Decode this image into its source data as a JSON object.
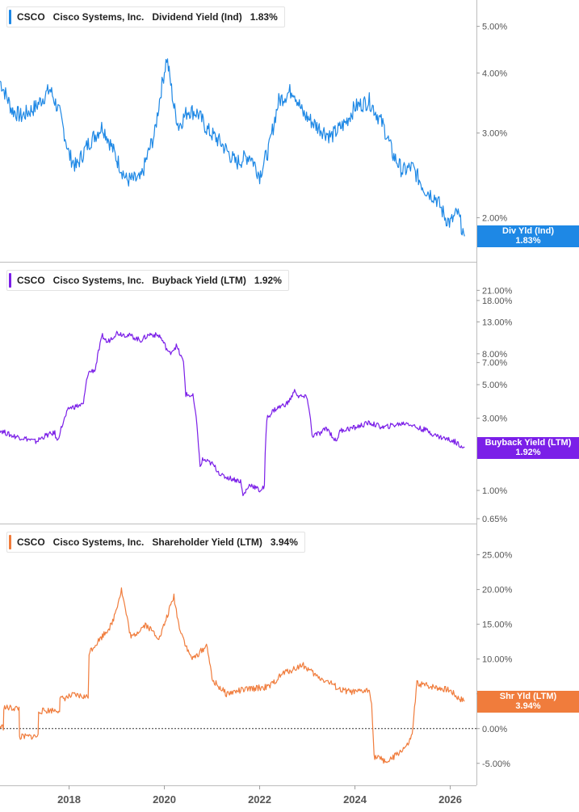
{
  "panels": [
    {
      "ticker": "CSCO",
      "company": "Cisco Systems, Inc.",
      "metric": "Dividend Yield (Ind)",
      "value": "1.83%",
      "tag_label": "Div Yld (Ind)",
      "tag_value": "1.83%",
      "color": "#1e88e5"
    },
    {
      "ticker": "CSCO",
      "company": "Cisco Systems, Inc.",
      "metric": "Buyback Yield (LTM)",
      "value": "1.92%",
      "tag_label": "Buyback Yield (LTM)",
      "tag_value": "1.92%",
      "color": "#7b1fe8"
    },
    {
      "ticker": "CSCO",
      "company": "Cisco Systems, Inc.",
      "metric": "Shareholder Yield (LTM)",
      "value": "3.94%",
      "tag_label": "Shr Yld (LTM)",
      "tag_value": "3.94%",
      "color": "#f07c3c"
    }
  ],
  "chart_data": [
    {
      "type": "line",
      "scale": "log",
      "series": [
        {
          "x": [
            2016.55,
            2016.8,
            2017.0,
            2017.3,
            2017.6,
            2017.8,
            2018.0,
            2018.15,
            2018.4,
            2018.7,
            2019.0,
            2019.2,
            2019.5,
            2019.8,
            2020.05,
            2020.2,
            2020.3,
            2020.5,
            2020.7,
            2020.9,
            2021.2,
            2021.5,
            2021.8,
            2022.0,
            2022.2,
            2022.4,
            2022.7,
            2022.9,
            2023.2,
            2023.5,
            2023.8,
            2024.0,
            2024.3,
            2024.6,
            2024.8,
            2025.0,
            2025.2,
            2025.45,
            2025.7,
            2025.9,
            2026.0,
            2026.15,
            2026.3
          ],
          "y": [
            3.85,
            3.35,
            3.25,
            3.4,
            3.7,
            3.3,
            2.7,
            2.55,
            2.85,
            3.1,
            2.65,
            2.4,
            2.4,
            3.0,
            4.3,
            3.4,
            3.1,
            3.35,
            3.3,
            3.05,
            2.85,
            2.6,
            2.7,
            2.45,
            2.8,
            3.5,
            3.7,
            3.3,
            3.1,
            2.95,
            3.15,
            3.4,
            3.5,
            3.1,
            2.7,
            2.5,
            2.55,
            2.3,
            2.2,
            2.0,
            1.95,
            2.05,
            1.83
          ]
        }
      ],
      "ylim": [
        1.75,
        5.5
      ],
      "yticks": [
        "5.00%",
        "4.00%",
        "3.00%",
        "2.00%"
      ]
    },
    {
      "type": "line",
      "scale": "log",
      "series": [
        {
          "x": [
            2016.55,
            2016.8,
            2017.1,
            2017.3,
            2017.5,
            2017.7,
            2017.75,
            2018.0,
            2018.3,
            2018.4,
            2018.55,
            2018.7,
            2018.8,
            2019.0,
            2019.3,
            2019.5,
            2019.7,
            2019.9,
            2020.1,
            2020.25,
            2020.4,
            2020.45,
            2020.6,
            2020.75,
            2020.8,
            2021.0,
            2021.2,
            2021.4,
            2021.6,
            2021.65,
            2021.8,
            2022.0,
            2022.1,
            2022.15,
            2022.3,
            2022.6,
            2022.75,
            2022.8,
            2023.0,
            2023.1,
            2023.3,
            2023.4,
            2023.6,
            2023.7,
            2024.0,
            2024.3,
            2024.6,
            2024.8,
            2025.1,
            2025.3,
            2025.5,
            2025.7,
            2025.9,
            2026.1,
            2026.3
          ],
          "y": [
            2.5,
            2.3,
            2.2,
            2.1,
            2.3,
            2.4,
            2.1,
            3.5,
            3.7,
            6.0,
            6.3,
            10.5,
            9.5,
            11.0,
            10.5,
            9.8,
            10.8,
            10.5,
            8.0,
            9.0,
            7.0,
            4.3,
            4.2,
            1.4,
            1.6,
            1.5,
            1.25,
            1.2,
            1.15,
            0.92,
            1.1,
            1.0,
            1.05,
            3.0,
            3.4,
            3.8,
            4.6,
            4.2,
            4.1,
            2.3,
            2.4,
            2.6,
            2.1,
            2.5,
            2.6,
            2.8,
            2.6,
            2.7,
            2.8,
            2.6,
            2.5,
            2.3,
            2.2,
            2.1,
            1.92
          ]
        }
      ],
      "ylim": [
        0.65,
        26
      ],
      "yticks": [
        "21.00%",
        "18.00%",
        "13.00%",
        "8.00%",
        "7.00%",
        "5.00%",
        "3.00%",
        "1.00%",
        "0.65%"
      ]
    },
    {
      "type": "line",
      "scale": "linear",
      "series": [
        {
          "x": [
            2016.55,
            2016.62,
            2016.63,
            2016.95,
            2016.96,
            2017.35,
            2017.36,
            2017.8,
            2017.81,
            2018.1,
            2018.4,
            2018.42,
            2018.6,
            2018.9,
            2019.1,
            2019.3,
            2019.6,
            2019.9,
            2020.2,
            2020.3,
            2020.5,
            2020.6,
            2020.9,
            2021.0,
            2021.3,
            2021.6,
            2021.9,
            2022.2,
            2022.5,
            2022.7,
            2022.9,
            2023.2,
            2023.5,
            2023.7,
            2024.0,
            2024.3,
            2024.35,
            2024.4,
            2024.7,
            2025.0,
            2025.1,
            2025.2,
            2025.3,
            2025.5,
            2025.8,
            2026.0,
            2026.15,
            2026.3
          ],
          "y": [
            0.3,
            0.2,
            3.0,
            2.9,
            -1.2,
            -1.1,
            2.5,
            2.7,
            4.2,
            4.8,
            4.5,
            11.0,
            12.5,
            15.0,
            20.0,
            13.0,
            15.0,
            13.0,
            19.0,
            15.0,
            11.0,
            10.0,
            12.0,
            7.0,
            5.0,
            5.5,
            5.8,
            6.0,
            8.0,
            8.5,
            9.2,
            7.5,
            6.5,
            5.5,
            5.2,
            5.5,
            4.0,
            -4.0,
            -4.8,
            -3.0,
            -2.5,
            -1.0,
            6.5,
            6.2,
            5.8,
            5.5,
            4.5,
            3.94
          ]
        }
      ],
      "ylim": [
        -7,
        26
      ],
      "yticks": [
        "25.00%",
        "20.00%",
        "15.00%",
        "10.00%",
        "5.00%",
        "0.00%",
        "-5.00%"
      ]
    }
  ],
  "x_axis": {
    "range": [
      2016.55,
      2026.55
    ],
    "labels": [
      "2018",
      "2020",
      "2022",
      "2024",
      "2026"
    ]
  }
}
